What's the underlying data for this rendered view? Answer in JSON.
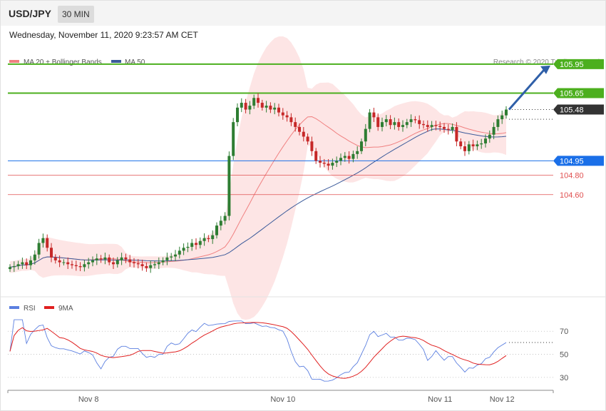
{
  "header": {
    "symbol": "USD/JPY",
    "timeframe": "30 MIN",
    "datetime": "Wednesday, November 11, 2020 9:23:57 AM CET"
  },
  "colors": {
    "ma20": "#f08080",
    "ma50": "#3b5a9a",
    "bollinger_fill": "#fde0e0",
    "bull": "#2e7d32",
    "bear": "#c62828",
    "resistance": "#4caf1e",
    "support_blue": "#1a6fe8",
    "support_red": "#e05050",
    "current": "#333333",
    "arrow": "#2f5fa8",
    "rsi": "#5b7fe0",
    "rsi_ma": "#e02020"
  },
  "chart_data": {
    "type": "candlestick",
    "legend": [
      {
        "label": "MA 20 + Bollinger Bands",
        "color": "#f08080"
      },
      {
        "label": "MA 50",
        "color": "#3b5a9a"
      }
    ],
    "credit": "Research © 2020 Trading Central",
    "x_ticks": [
      "Nov 8",
      "Nov 10",
      "Nov 11",
      "Nov 12"
    ],
    "ylim": [
      103.55,
      106.2
    ],
    "levels": [
      {
        "value": 105.95,
        "label": "105.95",
        "kind": "resistance"
      },
      {
        "value": 105.65,
        "label": "105.65",
        "kind": "resistance"
      },
      {
        "value": 105.48,
        "label": "105.48",
        "kind": "current"
      },
      {
        "value": 104.95,
        "label": "104.95",
        "kind": "pivot"
      },
      {
        "value": 104.8,
        "label": "104.80",
        "kind": "support"
      },
      {
        "value": 104.6,
        "label": "104.60",
        "kind": "support"
      }
    ],
    "target_arrow": {
      "from": 105.48,
      "to": 105.95
    },
    "close": [
      103.85,
      103.86,
      103.88,
      103.9,
      103.87,
      103.92,
      103.98,
      104.1,
      104.15,
      104.05,
      103.95,
      103.92,
      103.9,
      103.9,
      103.88,
      103.87,
      103.86,
      103.85,
      103.88,
      103.9,
      103.92,
      103.94,
      103.93,
      103.95,
      103.9,
      103.88,
      103.92,
      103.95,
      103.93,
      103.9,
      103.89,
      103.88,
      103.86,
      103.84,
      103.87,
      103.88,
      103.9,
      103.92,
      103.95,
      103.96,
      103.98,
      104.02,
      104.05,
      104.06,
      104.1,
      104.08,
      104.12,
      104.15,
      104.14,
      104.18,
      104.28,
      104.33,
      104.38,
      105.0,
      105.35,
      105.5,
      105.55,
      105.48,
      105.52,
      105.6,
      105.55,
      105.5,
      105.52,
      105.48,
      105.5,
      105.45,
      105.42,
      105.4,
      105.35,
      105.3,
      105.25,
      105.2,
      105.15,
      105.05,
      104.95,
      104.93,
      104.92,
      104.9,
      104.93,
      104.95,
      104.98,
      105.0,
      104.97,
      105.02,
      105.05,
      105.15,
      105.28,
      105.45,
      105.4,
      105.3,
      105.35,
      105.38,
      105.32,
      105.35,
      105.3,
      105.32,
      105.35,
      105.38,
      105.37,
      105.33,
      105.32,
      105.3,
      105.32,
      105.31,
      105.3,
      105.28,
      105.27,
      105.3,
      105.15,
      105.1,
      105.05,
      105.12,
      105.1,
      105.12,
      105.13,
      105.18,
      105.22,
      105.3,
      105.38,
      105.42,
      105.48
    ],
    "rsi": {
      "label": "RSI",
      "ma_label": "9MA",
      "ticks": [
        70,
        50,
        30
      ],
      "ylim": [
        20,
        85
      ]
    }
  }
}
